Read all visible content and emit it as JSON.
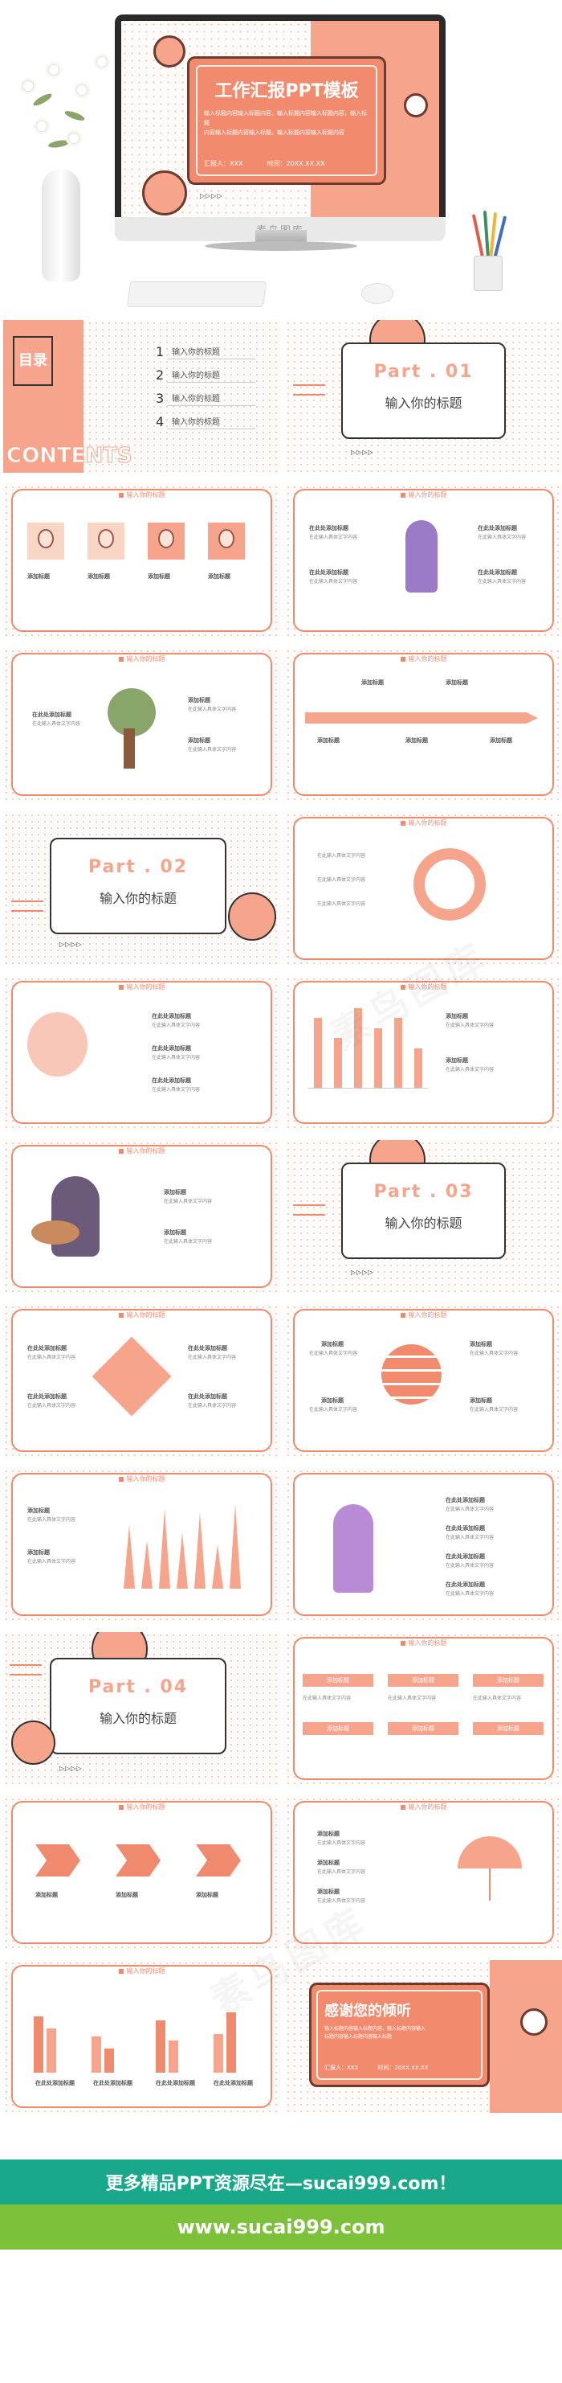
{
  "hero": {
    "title": "工作汇报PPT模板",
    "subtitle_lines": [
      "输入标题内容输入标题内容，输入标题内容输入标题内容，输入标题",
      "内容输入标题内容输入标题，输入标题内容输入标题内容"
    ],
    "reporter_label": "汇报人：",
    "reporter_value": "XXX",
    "time_label": "时间：",
    "time_value": "20XX.XX.XX",
    "watermark": "素鸟图库"
  },
  "contents": {
    "title": "目录",
    "word": "CONTENTS",
    "items": [
      {
        "num": "1",
        "label": "输入你的标题"
      },
      {
        "num": "2",
        "label": "输入你的标题"
      },
      {
        "num": "3",
        "label": "输入你的标题"
      },
      {
        "num": "4",
        "label": "输入你的标题"
      }
    ]
  },
  "parts": [
    {
      "num": "Part . 01",
      "title": "输入你的标题"
    },
    {
      "num": "Part . 02",
      "title": "输入你的标题"
    },
    {
      "num": "Part . 03",
      "title": "输入你的标题"
    },
    {
      "num": "Part . 04",
      "title": "输入你的标题"
    }
  ],
  "common": {
    "slide_heading": "输入你的标题",
    "item_heading": "添加标题",
    "item_heading_long": "在此处添加标题",
    "body_line": "在此输入具体文字内容",
    "body_short": "内容"
  },
  "thanks": {
    "title": "感谢您的倾听",
    "subtitle_lines": [
      "输入标题内容输入标题内容，输入标题内容输入",
      "标题内容输入标题内容输入标题"
    ],
    "reporter_label": "汇报人：",
    "reporter_value": "XXX",
    "time_label": "时间：",
    "time_value": "20XX.XX.XX"
  },
  "bar_chart": {
    "values": [
      7,
      5,
      8,
      6,
      7,
      4
    ],
    "y_ticks": [
      "8",
      "7",
      "6",
      "5",
      "4",
      "3",
      "2",
      "1",
      "0"
    ]
  },
  "footer": {
    "line1": "更多精品PPT资源尽在—sucai999.com！",
    "line2": "www.sucai999.com"
  },
  "colors": {
    "accent": "#ef8a6e",
    "peach": "#f6a58c",
    "green": "#1aa88a",
    "lime": "#7dc03a"
  }
}
